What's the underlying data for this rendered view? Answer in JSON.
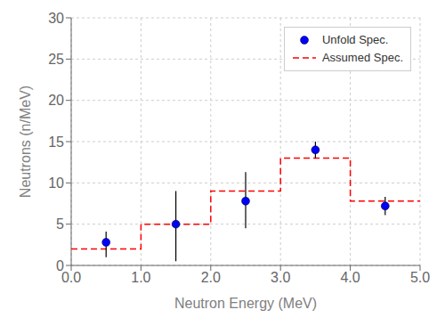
{
  "chart_data": {
    "type": "line",
    "x_label": "Neutron Energy (MeV)",
    "y_label": "Neutrons (n/MeV)",
    "xlim": [
      0.0,
      5.0
    ],
    "ylim": [
      0,
      30
    ],
    "xticks": [
      {
        "value": 0,
        "label": "0.0"
      },
      {
        "value": 1,
        "label": "1.0"
      },
      {
        "value": 2,
        "label": "2.0"
      },
      {
        "value": 3,
        "label": "3.0"
      },
      {
        "value": 4,
        "label": "4.0"
      },
      {
        "value": 5,
        "label": "5.0"
      }
    ],
    "yticks": [
      0,
      5,
      10,
      15,
      20,
      25,
      30
    ],
    "grid": true,
    "legend": "upper right",
    "series": [
      {
        "name": "Unfold Spec.",
        "type": "scatter",
        "color": "#0000FF",
        "marker": "circle",
        "x": [
          0.5,
          1.5,
          2.5,
          3.5,
          4.5
        ],
        "values": [
          2.8,
          5.0,
          7.8,
          14.0,
          7.2
        ],
        "error_lo": [
          1.8,
          4.5,
          3.3,
          1.0,
          1.1
        ],
        "error_hi": [
          1.3,
          4.0,
          3.5,
          1.0,
          1.1
        ]
      },
      {
        "name": "Assumed Spec.",
        "type": "line",
        "color": "#FF0000",
        "line_style": "dashed",
        "x": [
          0.0,
          1.0,
          1.0,
          2.0,
          2.0,
          3.0,
          3.0,
          4.0,
          4.0,
          5.0
        ],
        "values": [
          2.0,
          2.0,
          5.0,
          5.0,
          9.0,
          9.0,
          13.0,
          13.0,
          7.8,
          7.8
        ]
      }
    ]
  }
}
